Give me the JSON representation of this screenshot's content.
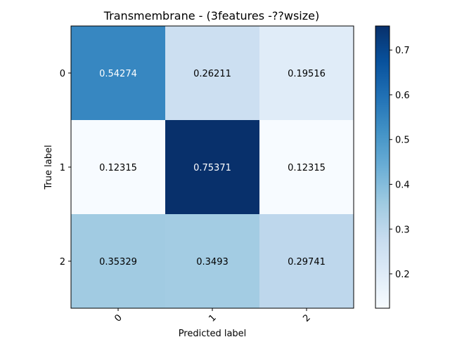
{
  "chart_data": {
    "type": "heatmap",
    "title": "Transmembrane - (3features -??wsize)",
    "xlabel": "Predicted label",
    "ylabel": "True label",
    "x_categories": [
      "0",
      "1",
      "2"
    ],
    "y_categories": [
      "0",
      "1",
      "2"
    ],
    "values": [
      [
        0.54274,
        0.26211,
        0.19516
      ],
      [
        0.12315,
        0.75371,
        0.12315
      ],
      [
        0.35329,
        0.3493,
        0.29741
      ]
    ],
    "value_labels": [
      [
        "0.54274",
        "0.26211",
        "0.19516"
      ],
      [
        "0.12315",
        "0.75371",
        "0.12315"
      ],
      [
        "0.35329",
        "0.3493",
        "0.29741"
      ]
    ],
    "colormap": "Blues",
    "colorbar": {
      "min": 0.12315,
      "max": 0.75371,
      "ticks": [
        0.2,
        0.3,
        0.4,
        0.5,
        0.6,
        0.7
      ],
      "tick_labels": [
        "0.2",
        "0.3",
        "0.4",
        "0.5",
        "0.6",
        "0.7"
      ]
    },
    "grid": false
  }
}
